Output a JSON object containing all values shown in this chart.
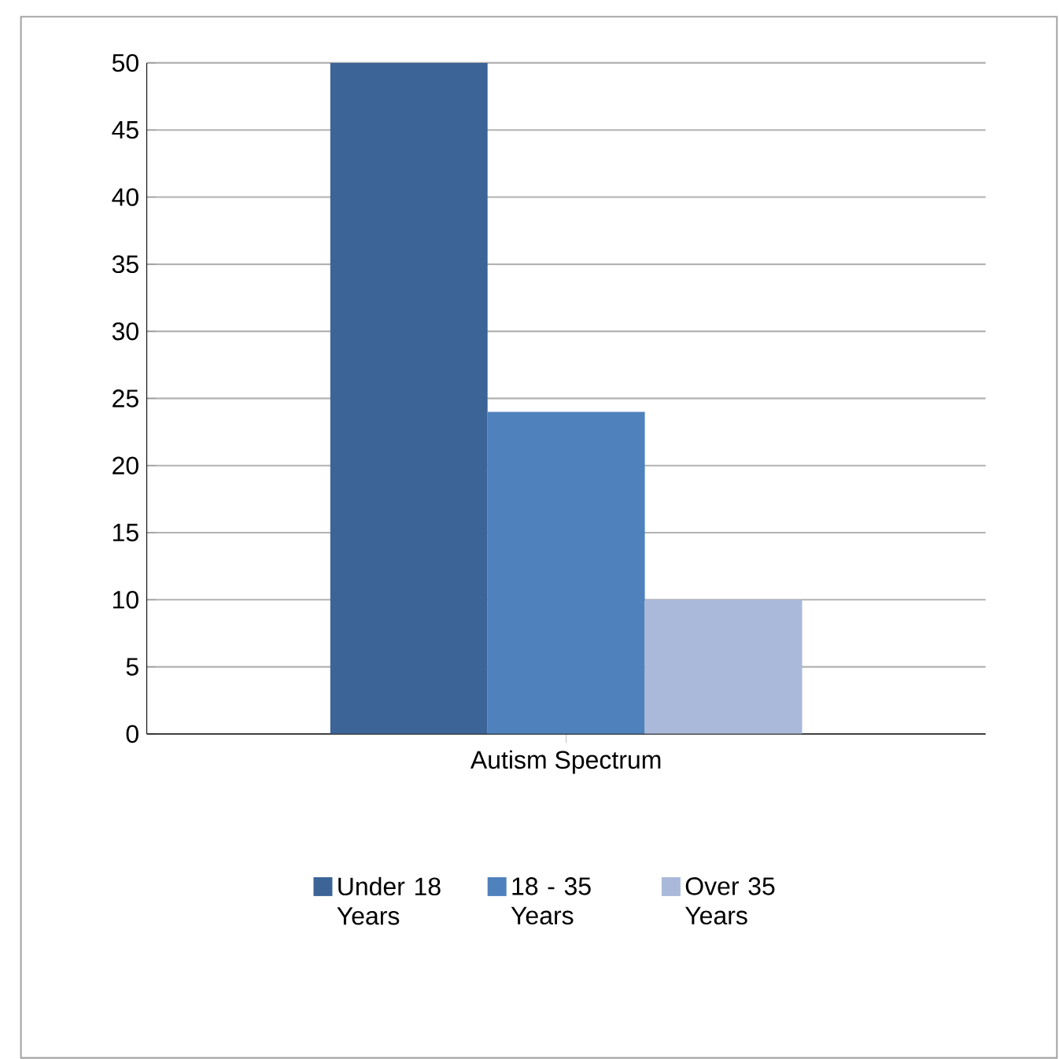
{
  "chart_data": {
    "type": "bar",
    "categories": [
      "Autism Spectrum"
    ],
    "series": [
      {
        "name": "Under 18 Years",
        "color": "#3c6497",
        "values": [
          50
        ]
      },
      {
        "name": "18 - 35 Years",
        "color": "#4f81bd",
        "values": [
          24
        ]
      },
      {
        "name": "Over 35 Years",
        "color": "#aab9da",
        "values": [
          10
        ]
      }
    ],
    "ylim": [
      0,
      50
    ],
    "yticks": [
      0,
      5,
      10,
      15,
      20,
      25,
      30,
      35,
      40,
      45,
      50
    ],
    "grid": "y",
    "legend": "bottom"
  }
}
